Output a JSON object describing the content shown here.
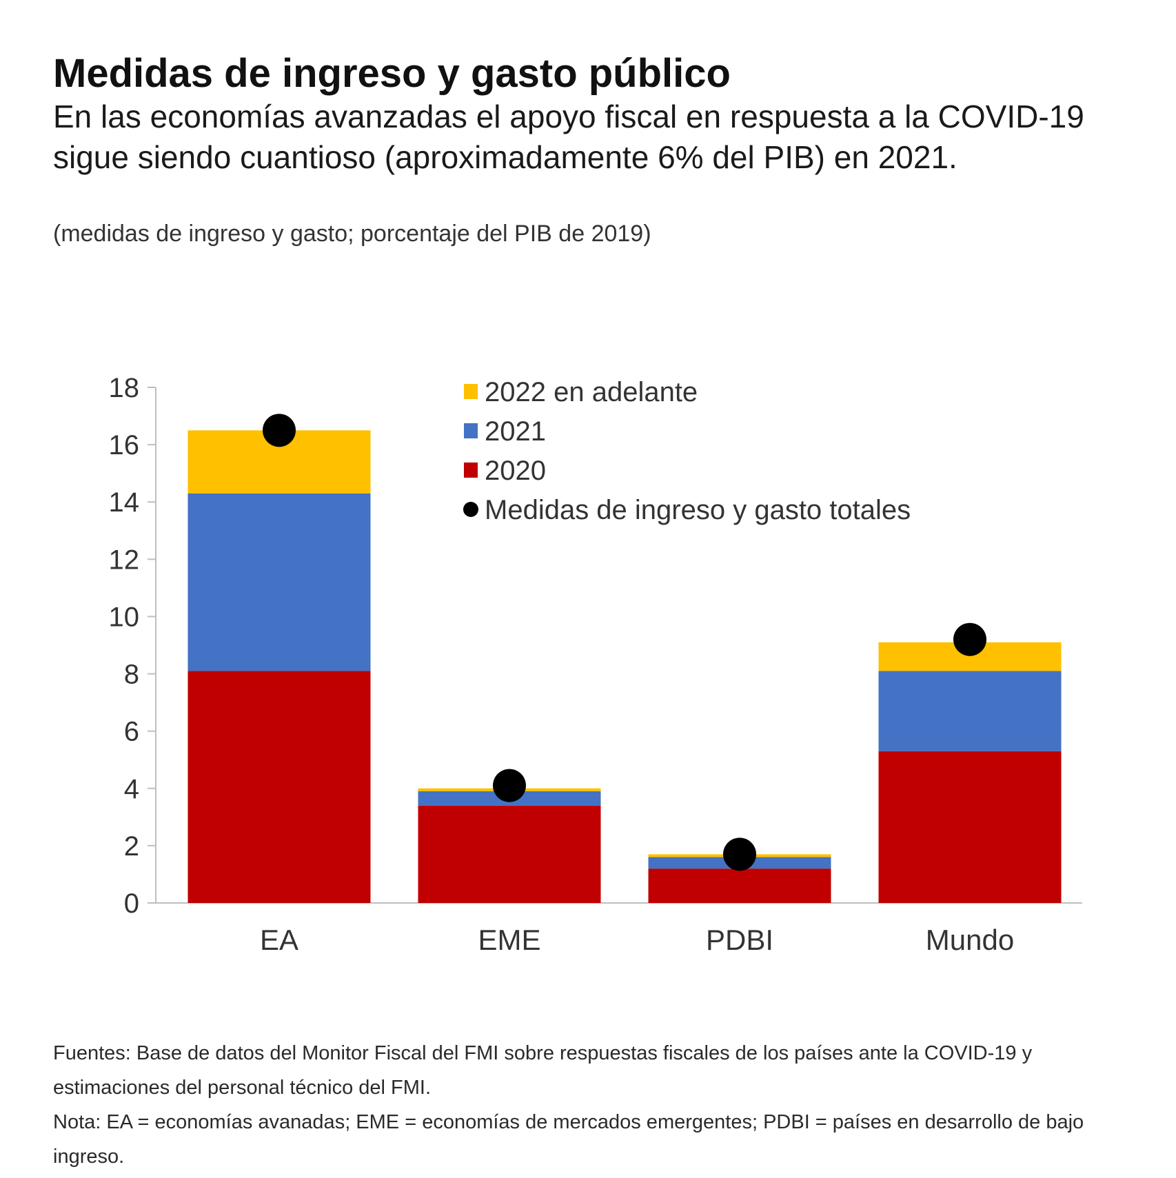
{
  "header": {
    "title": "Medidas de ingreso y gasto público",
    "subtitle": "En las economías avanzadas el apoyo fiscal en respuesta a la COVID-19 sigue siendo cuantioso (aproximadamente 6% del PIB) en 2021.",
    "units": "(medidas de ingreso y gasto; porcentaje del PIB de 2019)"
  },
  "chart_data": {
    "type": "bar",
    "stacked": true,
    "categories": [
      "EA",
      "EME",
      "PDBI",
      "Mundo"
    ],
    "series": [
      {
        "name": "2020",
        "values": [
          8.1,
          3.4,
          1.2,
          5.3
        ],
        "color": "#c00000"
      },
      {
        "name": "2021",
        "values": [
          6.2,
          0.5,
          0.4,
          2.8
        ],
        "color": "#4472c4"
      },
      {
        "name": "2022 en adelante",
        "values": [
          2.2,
          0.1,
          0.1,
          1.0
        ],
        "color": "#ffc000"
      }
    ],
    "totals": {
      "name": "Medidas de ingreso y gasto totales",
      "values": [
        16.5,
        4.1,
        1.7,
        9.2
      ],
      "color": "#000000"
    },
    "legend_order": [
      "2022 en adelante",
      "2021",
      "2020",
      "Medidas de ingreso y gasto totales"
    ],
    "y_ticks": [
      0,
      2,
      4,
      6,
      8,
      10,
      12,
      14,
      16,
      18
    ],
    "ylim": [
      0,
      18
    ],
    "grid": false,
    "legend_position": "top-center"
  },
  "footer": {
    "sources": "Fuentes: Base de datos del Monitor Fiscal del FMI sobre respuestas fiscales de los países ante la COVID-19 y estimaciones del personal técnico del FMI.",
    "note": "Nota: EA = economías avanadas; EME = economías de mercados emergentes; PDBI = países en desarrollo de bajo ingreso."
  }
}
